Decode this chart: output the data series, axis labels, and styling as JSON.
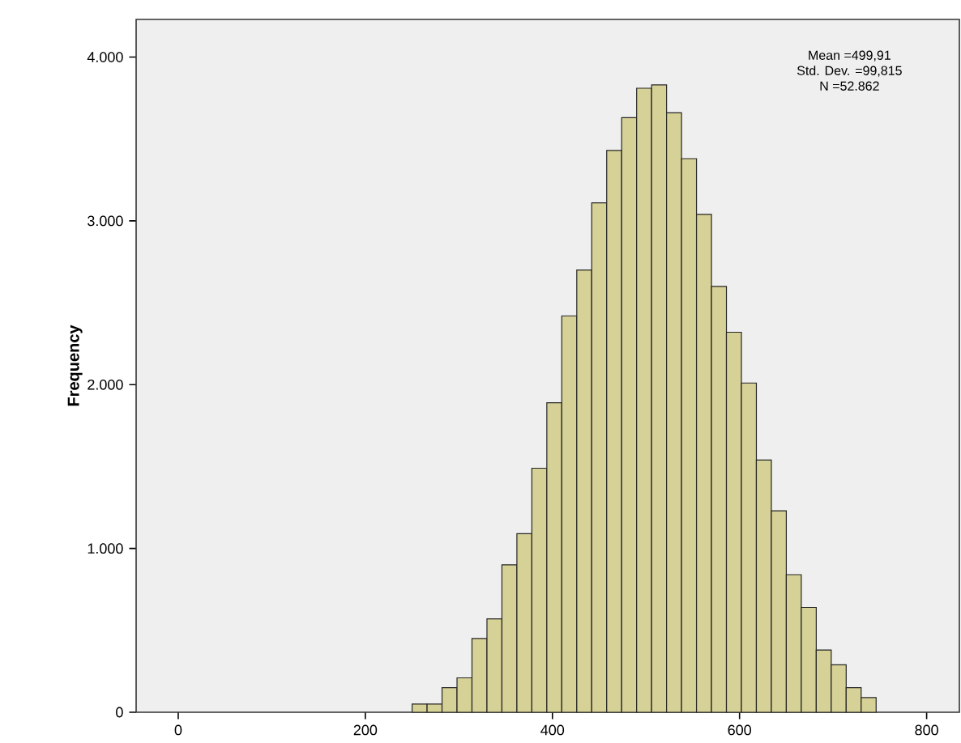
{
  "chart_data": {
    "type": "histogram",
    "ylabel": "Frequency",
    "bins": [
      250,
      266,
      282,
      298,
      314,
      330,
      346,
      362,
      378,
      394,
      410,
      426,
      442,
      458,
      474,
      490,
      506,
      522,
      538,
      554,
      570,
      586,
      602,
      618,
      634,
      650,
      666,
      682,
      698,
      714,
      730,
      746
    ],
    "values": [
      50,
      50,
      150,
      210,
      450,
      570,
      900,
      1090,
      1490,
      1890,
      2420,
      2700,
      3110,
      3430,
      3630,
      3810,
      3830,
      3660,
      3380,
      3040,
      2600,
      2320,
      2010,
      1540,
      1230,
      840,
      640,
      380,
      290,
      150,
      90
    ],
    "color": "#d6d196",
    "xlim": [
      -45,
      835
    ],
    "xticks": [
      0,
      200,
      400,
      600,
      800
    ],
    "ylim": [
      0,
      4230
    ],
    "yticks": [
      0,
      {
        "value": 1000,
        "label": "1.000"
      },
      {
        "value": 2000,
        "label": "2.000"
      },
      {
        "value": 3000,
        "label": "3.000"
      },
      {
        "value": 4000,
        "label": "4.000"
      }
    ],
    "grid": false,
    "annotations": [
      "Mean =499,91",
      "Std. Dev. =99,815",
      "N =52.862"
    ]
  }
}
